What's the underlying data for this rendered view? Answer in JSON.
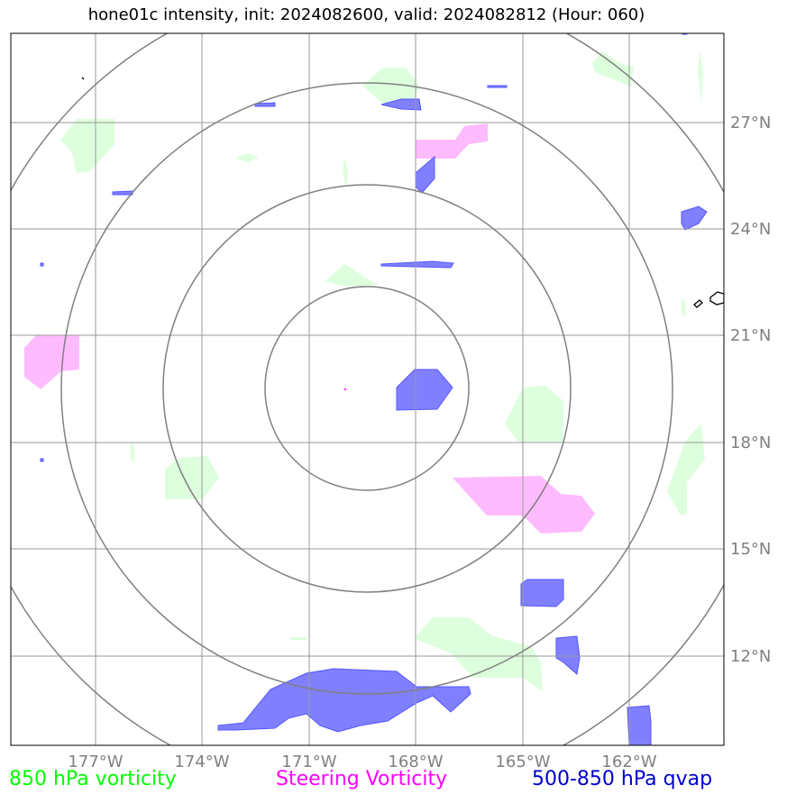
{
  "title": "hone01c intensity, init: 2024082600, valid: 2024082812 (Hour: 060)",
  "axes": {
    "lon_ticks": [
      "177°W",
      "174°W",
      "171°W",
      "168°W",
      "165°W",
      "162°W"
    ],
    "lat_ticks": [
      "27°N",
      "24°N",
      "21°N",
      "18°N",
      "15°N",
      "12°N"
    ]
  },
  "legend": {
    "vort850": {
      "label": "850 hPa vorticity",
      "color": "#00ff00"
    },
    "steering": {
      "label": "Steering Vorticity",
      "color": "#ff00ff"
    },
    "qvap": {
      "label": "500-850 hPa qvap",
      "color": "#0000cc"
    }
  },
  "colors": {
    "vort850_fill": "#ddffdd",
    "steering_fill": "#ffbbff",
    "qvap_fill": "#8080ff",
    "grid": "#999999",
    "range_rings": "#808080"
  },
  "map": {
    "range_ring_count": 4,
    "extent": {
      "lon_min": -179.4,
      "lon_max": -159.4,
      "lat_min": 9.75,
      "lat_max": 29.75
    }
  }
}
